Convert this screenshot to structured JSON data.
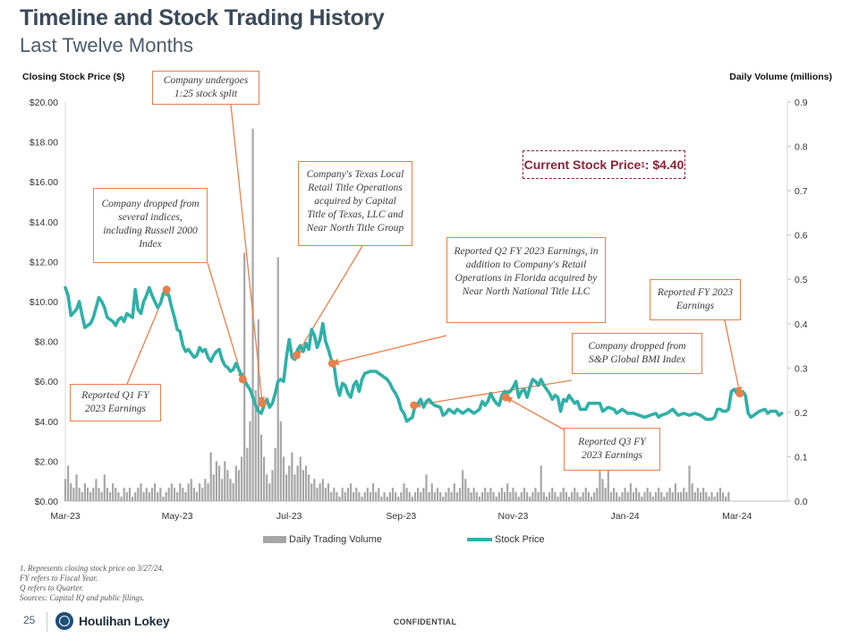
{
  "title": "Timeline and Stock Trading History",
  "subtitle": "Last Twelve Months",
  "current_price": {
    "label": "Current Stock Price",
    "sup": "1",
    "value": ": $4.40"
  },
  "colors": {
    "price_line": "#2fb0a8",
    "volume_bar": "#a6a6a6",
    "annotation": "#e8804b",
    "accent": "#8b2335"
  },
  "annotations": {
    "split": "Company undergoes 1:25 stock split",
    "dropped_indices": "Company dropped from several indices, including Russell 2000 Index",
    "texas": "Company's Texas Local Retail Title Operations acquired by Capital Title of Texas, LLC and Near North Title Group",
    "q2": "Reported Q2 FY 2023 Earnings, in addition to Company's Retail Operations in Florida acquired by Near North National Title LLC",
    "fy": "Reported FY 2023 Earnings",
    "sp_drop": "Company dropped from S&P Global BMI Index",
    "q1": "Reported Q1 FY 2023 Earnings",
    "q3": "Reported Q3 FY 2023 Earnings"
  },
  "footnotes": {
    "note1": "1.  Represents closing stock price on 3/27/24.",
    "note2": "FY refers to Fiscal Year.",
    "note3": "Q refers to Quarter.",
    "note4": "Sources: Capital IQ and public filings."
  },
  "footer": {
    "page": "25",
    "brand": "Houlihan Lokey",
    "confidential": "CONFIDENTIAL"
  },
  "chart_data": {
    "type": "line",
    "title": "Timeline and Stock Trading History",
    "ylabel": "Closing Stock Price ($)",
    "y2label": "Daily Volume (millions)",
    "ylim": [
      0,
      20
    ],
    "y2lim": [
      0,
      0.9
    ],
    "yticks": [
      "$0.00",
      "$2.00",
      "$4.00",
      "$6.00",
      "$8.00",
      "$10.00",
      "$12.00",
      "$14.00",
      "$16.00",
      "$18.00",
      "$20.00"
    ],
    "y2ticks": [
      "0.0",
      "0.1",
      "0.2",
      "0.3",
      "0.4",
      "0.5",
      "0.6",
      "0.7",
      "0.8",
      "0.9"
    ],
    "xlim": [
      0,
      12.9
    ],
    "xticks": [
      {
        "label": "Mar-23",
        "pos": 0
      },
      {
        "label": "May-23",
        "pos": 2
      },
      {
        "label": "Jul-23",
        "pos": 4
      },
      {
        "label": "Sep-23",
        "pos": 6
      },
      {
        "label": "Nov-23",
        "pos": 8
      },
      {
        "label": "Jan-24",
        "pos": 10
      },
      {
        "label": "Mar-24",
        "pos": 12
      }
    ],
    "legend": [
      "Daily Trading Volume",
      "Stock Price"
    ],
    "series": [
      {
        "name": "Stock Price",
        "points": [
          [
            0.0,
            10.7
          ],
          [
            0.05,
            10.3
          ],
          [
            0.1,
            9.3
          ],
          [
            0.2,
            9.6
          ],
          [
            0.25,
            10.0
          ],
          [
            0.3,
            9.3
          ],
          [
            0.35,
            8.7
          ],
          [
            0.45,
            8.9
          ],
          [
            0.5,
            9.2
          ],
          [
            0.55,
            9.7
          ],
          [
            0.6,
            10.2
          ],
          [
            0.65,
            10.0
          ],
          [
            0.7,
            9.7
          ],
          [
            0.75,
            9.2
          ],
          [
            0.85,
            9.0
          ],
          [
            0.9,
            8.8
          ],
          [
            0.95,
            9.1
          ],
          [
            1.0,
            9.2
          ],
          [
            1.05,
            9.0
          ],
          [
            1.1,
            9.4
          ],
          [
            1.15,
            9.3
          ],
          [
            1.2,
            9.2
          ],
          [
            1.25,
            10.6
          ],
          [
            1.3,
            9.6
          ],
          [
            1.35,
            9.4
          ],
          [
            1.4,
            10.0
          ],
          [
            1.45,
            10.3
          ],
          [
            1.5,
            10.7
          ],
          [
            1.55,
            10.3
          ],
          [
            1.6,
            10.0
          ],
          [
            1.65,
            9.7
          ],
          [
            1.7,
            9.9
          ],
          [
            1.75,
            10.4
          ],
          [
            1.8,
            10.6
          ],
          [
            1.85,
            10.3
          ],
          [
            1.9,
            9.7
          ],
          [
            1.95,
            9.2
          ],
          [
            2.0,
            8.6
          ],
          [
            2.05,
            8.5
          ],
          [
            2.1,
            7.8
          ],
          [
            2.15,
            7.5
          ],
          [
            2.2,
            7.6
          ],
          [
            2.25,
            7.4
          ],
          [
            2.3,
            7.2
          ],
          [
            2.35,
            7.3
          ],
          [
            2.4,
            7.7
          ],
          [
            2.45,
            7.5
          ],
          [
            2.5,
            7.6
          ],
          [
            2.55,
            7.2
          ],
          [
            2.6,
            7.0
          ],
          [
            2.65,
            7.3
          ],
          [
            2.7,
            7.5
          ],
          [
            2.75,
            7.6
          ],
          [
            2.8,
            7.1
          ],
          [
            2.85,
            6.8
          ],
          [
            2.9,
            6.7
          ],
          [
            2.95,
            6.5
          ],
          [
            3.0,
            6.6
          ],
          [
            3.05,
            6.9
          ],
          [
            3.1,
            6.6
          ],
          [
            3.15,
            6.3
          ],
          [
            3.2,
            6.1
          ],
          [
            3.25,
            5.8
          ],
          [
            3.3,
            5.6
          ],
          [
            3.35,
            5.2
          ],
          [
            3.4,
            4.8
          ],
          [
            3.45,
            4.5
          ],
          [
            3.5,
            4.4
          ],
          [
            3.55,
            4.8
          ],
          [
            3.6,
            5.1
          ],
          [
            3.65,
            4.7
          ],
          [
            3.7,
            4.9
          ],
          [
            3.75,
            5.4
          ],
          [
            3.8,
            6.0
          ],
          [
            3.85,
            6.1
          ],
          [
            3.9,
            6.0
          ],
          [
            3.95,
            7.2
          ],
          [
            4.0,
            8.1
          ],
          [
            4.05,
            7.2
          ],
          [
            4.1,
            7.1
          ],
          [
            4.15,
            7.6
          ],
          [
            4.2,
            7.8
          ],
          [
            4.25,
            7.5
          ],
          [
            4.3,
            7.9
          ],
          [
            4.35,
            7.6
          ],
          [
            4.4,
            8.6
          ],
          [
            4.45,
            8.3
          ],
          [
            4.5,
            7.7
          ],
          [
            4.55,
            8.1
          ],
          [
            4.6,
            8.9
          ],
          [
            4.65,
            8.0
          ],
          [
            4.7,
            7.6
          ],
          [
            4.75,
            7.1
          ],
          [
            4.8,
            6.8
          ],
          [
            4.85,
            5.8
          ],
          [
            4.9,
            5.3
          ],
          [
            4.95,
            5.9
          ],
          [
            5.0,
            5.8
          ],
          [
            5.05,
            5.4
          ],
          [
            5.1,
            5.2
          ],
          [
            5.15,
            5.8
          ],
          [
            5.2,
            6.0
          ],
          [
            5.25,
            5.5
          ],
          [
            5.3,
            6.1
          ],
          [
            5.35,
            6.4
          ],
          [
            5.45,
            6.5
          ],
          [
            5.55,
            6.5
          ],
          [
            5.65,
            6.3
          ],
          [
            5.75,
            6.1
          ],
          [
            5.8,
            5.9
          ],
          [
            5.85,
            5.6
          ],
          [
            5.9,
            5.4
          ],
          [
            5.95,
            5.1
          ],
          [
            6.0,
            4.6
          ],
          [
            6.05,
            4.4
          ],
          [
            6.1,
            4.0
          ],
          [
            6.15,
            4.1
          ],
          [
            6.2,
            4.2
          ],
          [
            6.25,
            4.8
          ],
          [
            6.3,
            4.9
          ],
          [
            6.35,
            5.1
          ],
          [
            6.4,
            4.7
          ],
          [
            6.45,
            5.0
          ],
          [
            6.5,
            5.1
          ],
          [
            6.55,
            4.9
          ],
          [
            6.6,
            4.8
          ],
          [
            6.7,
            4.7
          ],
          [
            6.75,
            4.3
          ],
          [
            6.8,
            4.4
          ],
          [
            6.85,
            4.6
          ],
          [
            6.9,
            4.5
          ],
          [
            6.95,
            4.4
          ],
          [
            7.0,
            4.6
          ],
          [
            7.1,
            4.4
          ],
          [
            7.2,
            4.6
          ],
          [
            7.3,
            4.4
          ],
          [
            7.4,
            4.6
          ],
          [
            7.45,
            5.0
          ],
          [
            7.5,
            4.8
          ],
          [
            7.55,
            5.0
          ],
          [
            7.6,
            5.4
          ],
          [
            7.65,
            5.1
          ],
          [
            7.7,
            4.9
          ],
          [
            7.75,
            4.8
          ],
          [
            7.8,
            5.3
          ],
          [
            7.85,
            5.5
          ],
          [
            7.9,
            5.4
          ],
          [
            7.95,
            5.5
          ],
          [
            8.0,
            5.7
          ],
          [
            8.05,
            6.0
          ],
          [
            8.1,
            5.2
          ],
          [
            8.15,
            5.5
          ],
          [
            8.2,
            5.6
          ],
          [
            8.25,
            5.2
          ],
          [
            8.3,
            5.7
          ],
          [
            8.35,
            6.1
          ],
          [
            8.4,
            6.0
          ],
          [
            8.45,
            5.8
          ],
          [
            8.5,
            6.1
          ],
          [
            8.55,
            5.8
          ],
          [
            8.6,
            5.6
          ],
          [
            8.65,
            5.4
          ],
          [
            8.7,
            5.1
          ],
          [
            8.75,
            5.3
          ],
          [
            8.8,
            5.2
          ],
          [
            8.85,
            4.5
          ],
          [
            8.9,
            5.1
          ],
          [
            8.95,
            5.0
          ],
          [
            9.0,
            5.3
          ],
          [
            9.05,
            5.1
          ],
          [
            9.1,
            4.9
          ],
          [
            9.15,
            5.0
          ],
          [
            9.2,
            4.6
          ],
          [
            9.3,
            4.6
          ],
          [
            9.35,
            4.9
          ],
          [
            9.45,
            4.9
          ],
          [
            9.55,
            4.9
          ],
          [
            9.6,
            4.5
          ],
          [
            9.7,
            4.7
          ],
          [
            9.8,
            4.6
          ],
          [
            9.85,
            4.4
          ],
          [
            9.95,
            4.6
          ],
          [
            10.05,
            4.4
          ],
          [
            10.15,
            4.4
          ],
          [
            10.25,
            4.3
          ],
          [
            10.35,
            4.2
          ],
          [
            10.45,
            4.3
          ],
          [
            10.55,
            4.4
          ],
          [
            10.6,
            4.2
          ],
          [
            10.65,
            4.3
          ],
          [
            10.75,
            4.4
          ],
          [
            10.85,
            4.6
          ],
          [
            10.95,
            4.3
          ],
          [
            11.05,
            4.4
          ],
          [
            11.15,
            4.3
          ],
          [
            11.25,
            4.4
          ],
          [
            11.35,
            4.3
          ],
          [
            11.45,
            4.1
          ],
          [
            11.55,
            4.1
          ],
          [
            11.6,
            4.2
          ],
          [
            11.65,
            4.6
          ],
          [
            11.7,
            4.6
          ],
          [
            11.75,
            4.5
          ],
          [
            11.8,
            4.5
          ],
          [
            11.85,
            4.6
          ],
          [
            11.9,
            5.5
          ],
          [
            11.95,
            5.6
          ],
          [
            12.0,
            5.4
          ],
          [
            12.05,
            5.3
          ],
          [
            12.1,
            5.5
          ],
          [
            12.15,
            5.3
          ],
          [
            12.2,
            4.4
          ],
          [
            12.25,
            4.2
          ],
          [
            12.3,
            4.3
          ],
          [
            12.4,
            4.5
          ],
          [
            12.5,
            4.6
          ],
          [
            12.55,
            4.4
          ],
          [
            12.6,
            4.5
          ],
          [
            12.7,
            4.5
          ],
          [
            12.75,
            4.3
          ],
          [
            12.8,
            4.4
          ]
        ]
      },
      {
        "name": "Daily Trading Volume",
        "x_start": 0.0,
        "x_step": 0.05,
        "values_millions": [
          0.05,
          0.08,
          0.04,
          0.03,
          0.06,
          0.03,
          0.02,
          0.04,
          0.03,
          0.02,
          0.03,
          0.05,
          0.03,
          0.02,
          0.06,
          0.03,
          0.02,
          0.04,
          0.03,
          0.02,
          0.01,
          0.03,
          0.02,
          0.03,
          0.01,
          0.02,
          0.03,
          0.04,
          0.02,
          0.03,
          0.02,
          0.03,
          0.04,
          0.02,
          0.03,
          0.01,
          0.02,
          0.03,
          0.04,
          0.03,
          0.02,
          0.04,
          0.03,
          0.02,
          0.04,
          0.05,
          0.03,
          0.02,
          0.04,
          0.03,
          0.05,
          0.04,
          0.11,
          0.06,
          0.09,
          0.08,
          0.05,
          0.09,
          0.07,
          0.05,
          0.04,
          0.08,
          0.07,
          0.1,
          0.56,
          0.12,
          0.18,
          0.84,
          0.25,
          0.41,
          0.15,
          0.1,
          0.06,
          0.04,
          0.07,
          0.12,
          0.55,
          0.18,
          0.1,
          0.06,
          0.08,
          0.11,
          0.06,
          0.08,
          0.1,
          0.07,
          0.08,
          0.06,
          0.04,
          0.05,
          0.03,
          0.04,
          0.05,
          0.03,
          0.04,
          0.02,
          0.03,
          0.02,
          0.01,
          0.03,
          0.02,
          0.03,
          0.04,
          0.02,
          0.03,
          0.02,
          0.01,
          0.02,
          0.03,
          0.02,
          0.04,
          0.02,
          0.03,
          0.01,
          0.02,
          0.01,
          0.02,
          0.03,
          0.02,
          0.01,
          0.02,
          0.04,
          0.03,
          0.02,
          0.01,
          0.02,
          0.03,
          0.02,
          0.03,
          0.06,
          0.02,
          0.04,
          0.02,
          0.03,
          0.02,
          0.01,
          0.02,
          0.03,
          0.02,
          0.04,
          0.02,
          0.03,
          0.07,
          0.05,
          0.03,
          0.02,
          0.03,
          0.02,
          0.01,
          0.02,
          0.03,
          0.02,
          0.03,
          0.02,
          0.01,
          0.02,
          0.03,
          0.02,
          0.04,
          0.02,
          0.03,
          0.02,
          0.01,
          0.02,
          0.03,
          0.02,
          0.01,
          0.02,
          0.03,
          0.02,
          0.08,
          0.02,
          0.01,
          0.02,
          0.03,
          0.02,
          0.01,
          0.02,
          0.03,
          0.02,
          0.01,
          0.02,
          0.03,
          0.02,
          0.01,
          0.02,
          0.03,
          0.02,
          0.01,
          0.02,
          0.03,
          0.12,
          0.05,
          0.03,
          0.08,
          0.02,
          0.03,
          0.02,
          0.01,
          0.02,
          0.03,
          0.02,
          0.04,
          0.02,
          0.03,
          0.02,
          0.01,
          0.02,
          0.03,
          0.02,
          0.01,
          0.02,
          0.03,
          0.02,
          0.01,
          0.02,
          0.03,
          0.02,
          0.04,
          0.02,
          0.02,
          0.03,
          0.02,
          0.08,
          0.04,
          0.02,
          0.03,
          0.02,
          0.03,
          0.02,
          0.01,
          0.02,
          0.01,
          0.02,
          0.03,
          0.02,
          0.01,
          0.02
        ]
      }
    ],
    "markers": [
      {
        "x": 1.81,
        "y": 10.6
      },
      {
        "x": 3.17,
        "y": 6.1
      },
      {
        "x": 3.52,
        "y": 4.9
      },
      {
        "x": 4.13,
        "y": 7.3
      },
      {
        "x": 4.77,
        "y": 6.9
      },
      {
        "x": 6.23,
        "y": 4.8
      },
      {
        "x": 7.87,
        "y": 5.2
      },
      {
        "x": 12.05,
        "y": 5.4
      }
    ]
  }
}
